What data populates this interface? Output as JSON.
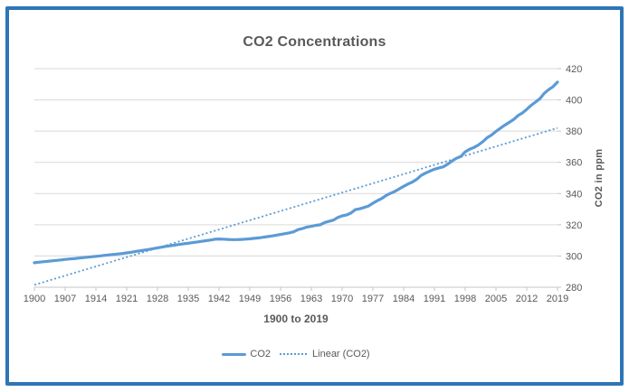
{
  "chart_data": {
    "type": "line",
    "title": "CO2 Concentrations",
    "xlabel": "1900 to 2019",
    "ylabel": "CO2 in ppm",
    "grid": "horizontal",
    "legend_position": "bottom",
    "x_axis": {
      "range": [
        1900,
        2019
      ],
      "tick_labels": [
        1900,
        1907,
        1914,
        1921,
        1928,
        1935,
        1942,
        1949,
        1956,
        1963,
        1970,
        1977,
        1984,
        1991,
        1998,
        2005,
        2012,
        2019
      ]
    },
    "y_axis": {
      "side": "right",
      "range": [
        280,
        420
      ],
      "tick_labels": [
        280,
        300,
        320,
        340,
        360,
        380,
        400,
        420
      ]
    },
    "series": [
      {
        "name": "CO2",
        "style": "solid",
        "x_start": 1900,
        "x_step": 1,
        "values": [
          295.7,
          296.0,
          296.3,
          296.6,
          296.9,
          297.2,
          297.5,
          297.8,
          298.1,
          298.3,
          298.6,
          298.9,
          299.2,
          299.5,
          299.8,
          300.1,
          300.4,
          300.7,
          301.0,
          301.3,
          301.6,
          302.0,
          302.4,
          302.9,
          303.3,
          303.8,
          304.2,
          304.7,
          305.2,
          305.7,
          306.2,
          306.6,
          307.0,
          307.4,
          307.8,
          308.2,
          308.6,
          309.0,
          309.4,
          309.8,
          310.2,
          310.7,
          310.9,
          310.8,
          310.6,
          310.5,
          310.5,
          310.6,
          310.8,
          311.0,
          311.3,
          311.6,
          312.0,
          312.4,
          312.8,
          313.3,
          313.8,
          314.3,
          314.8,
          315.5,
          316.9,
          317.6,
          318.5,
          319.0,
          319.6,
          320.0,
          321.4,
          322.2,
          323.0,
          324.6,
          325.7,
          326.3,
          327.5,
          329.7,
          330.2,
          331.1,
          332.0,
          333.8,
          335.4,
          336.8,
          338.8,
          340.1,
          341.4,
          343.0,
          344.6,
          346.1,
          347.4,
          349.2,
          351.6,
          353.1,
          354.4,
          355.6,
          356.4,
          357.1,
          358.8,
          360.8,
          362.6,
          363.7,
          366.7,
          368.4,
          369.5,
          371.1,
          373.2,
          375.8,
          377.5,
          379.8,
          381.9,
          383.8,
          385.6,
          387.4,
          389.9,
          391.6,
          393.9,
          396.5,
          398.6,
          400.8,
          404.2,
          406.6,
          408.5,
          411.4
        ]
      }
    ],
    "trendline": {
      "name": "Linear (CO2)",
      "style": "dotted",
      "x_start": 1900,
      "x_end": 2019,
      "start_value": 281.5,
      "end_value": 382.0
    },
    "legend": [
      {
        "label": "CO2",
        "marker": "solid-line"
      },
      {
        "label": "Linear (CO2)",
        "marker": "dotted-line"
      }
    ],
    "colors": {
      "series": "#5B9BD5",
      "trend": "#5B9BD5",
      "frame": "#2E75B6",
      "grid": "#D9D9D9",
      "axis": "#C6C6C6",
      "text": "#595959"
    }
  }
}
